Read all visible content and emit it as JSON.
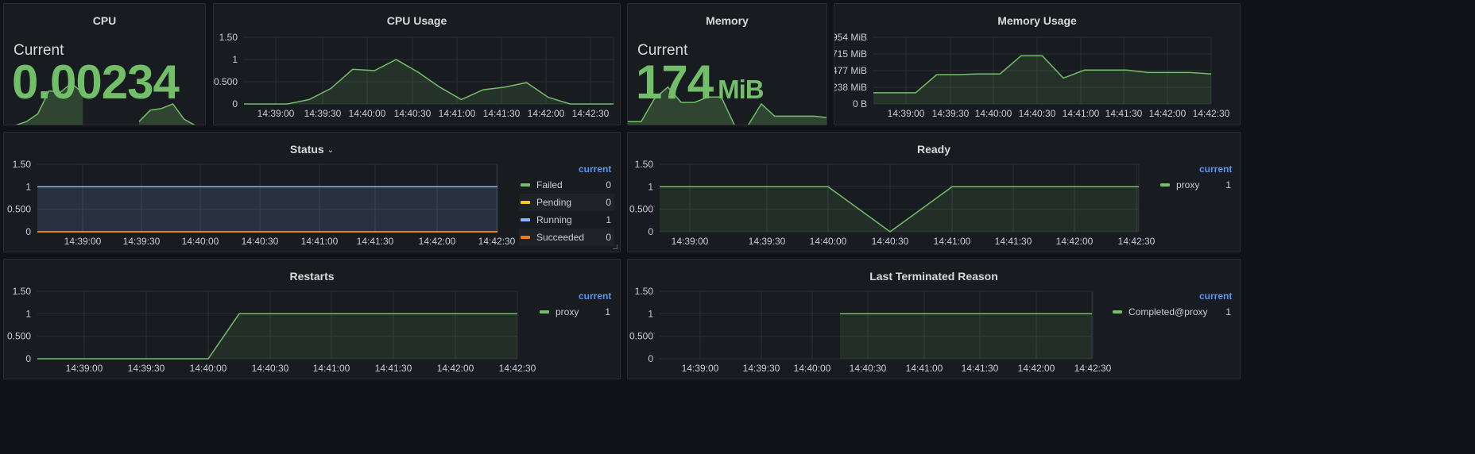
{
  "colors": {
    "green": "#73bf69",
    "yellow": "#f2cc0c",
    "cyan": "#8ab8ff",
    "orange": "#ff780a",
    "accent": "#5794f2"
  },
  "time_ticks": [
    "14:39:00",
    "14:39:30",
    "14:40:00",
    "14:40:30",
    "14:41:00",
    "14:41:30",
    "14:42:00",
    "14:42:30"
  ],
  "cpu": {
    "title": "CPU",
    "label": "Current",
    "value": "0.00234",
    "sparkline": [
      0,
      0,
      0.05,
      0.15,
      0.45,
      0.43,
      0.55,
      0.42,
      null,
      null,
      null,
      null,
      0.05,
      0.2,
      0.22,
      0.28,
      0.08,
      0,
      0
    ]
  },
  "cpu_usage": {
    "title": "CPU Usage",
    "y_ticks": [
      "0",
      "0.500",
      "1",
      "1.50"
    ],
    "ylim": [
      0,
      1.5
    ],
    "values": [
      0,
      0,
      0,
      0.1,
      0.35,
      0.78,
      0.75,
      1,
      0.72,
      0.38,
      0.1,
      0.32,
      0.38,
      0.48,
      0.15,
      0,
      0,
      0
    ]
  },
  "memory": {
    "title": "Memory",
    "label": "Current",
    "value": "174",
    "unit": "MiB",
    "sparkline": [
      0.05,
      0.05,
      0.35,
      0.5,
      0.3,
      0.3,
      0.37,
      0.37,
      0,
      0,
      0.28,
      0.12,
      0.12,
      0.12,
      0.12,
      0.1
    ]
  },
  "memory_usage": {
    "title": "Memory Usage",
    "y_ticks": [
      "0 B",
      "238 MiB",
      "477 MiB",
      "715 MiB",
      "954 MiB"
    ],
    "ylim": [
      0,
      954
    ],
    "values": [
      160,
      160,
      160,
      420,
      420,
      430,
      430,
      690,
      690,
      370,
      485,
      485,
      485,
      450,
      450,
      450,
      430
    ]
  },
  "status": {
    "title": "Status",
    "y_ticks": [
      "0",
      "0.500",
      "1",
      "1.50"
    ],
    "legend_header": "current",
    "series": [
      {
        "name": "Failed",
        "value": "0",
        "color": "#73bf69"
      },
      {
        "name": "Pending",
        "value": "0",
        "color": "#f2cc0c"
      },
      {
        "name": "Running",
        "value": "1",
        "color": "#8ab8ff"
      },
      {
        "name": "Succeeded",
        "value": "0",
        "color": "#ff780a"
      }
    ]
  },
  "ready": {
    "title": "Ready",
    "y_ticks": [
      "0",
      "0.500",
      "1",
      "1.50"
    ],
    "legend_header": "current",
    "series": [
      {
        "name": "proxy",
        "value": "1",
        "color": "#73bf69"
      }
    ],
    "values": [
      1,
      1,
      1,
      1,
      1,
      1,
      1,
      0,
      1,
      1,
      1,
      1,
      1,
      1,
      1,
      1
    ]
  },
  "restarts": {
    "title": "Restarts",
    "y_ticks": [
      "0",
      "0.500",
      "1",
      "1.50"
    ],
    "legend_header": "current",
    "series": [
      {
        "name": "proxy",
        "value": "1",
        "color": "#73bf69"
      }
    ]
  },
  "last_terminated": {
    "title": "Last Terminated Reason",
    "y_ticks": [
      "0",
      "0.500",
      "1",
      "1.50"
    ],
    "legend_header": "current",
    "series": [
      {
        "name": "Completed@proxy",
        "value": "1",
        "color": "#73bf69"
      }
    ]
  }
}
